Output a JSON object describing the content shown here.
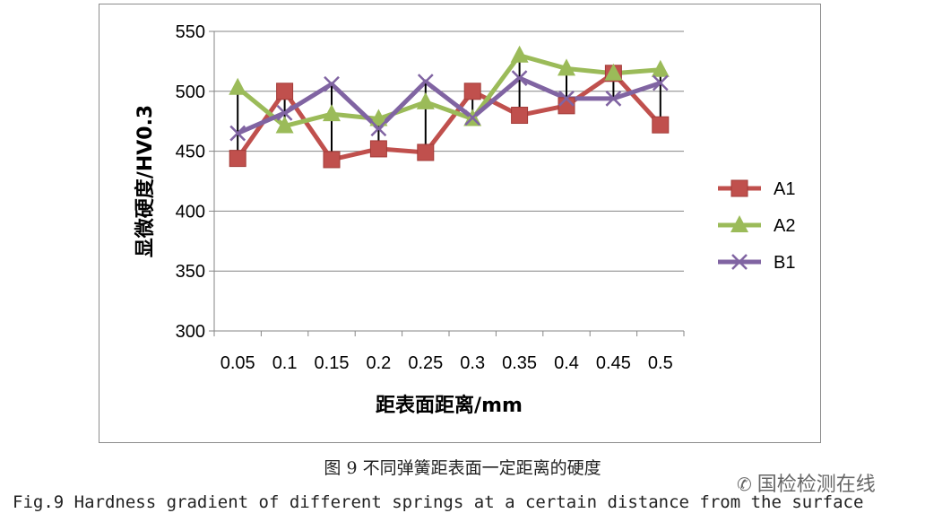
{
  "chart_data": {
    "type": "line",
    "title": "",
    "xlabel": "距表面距离/mm",
    "ylabel": "显微硬度/HV0.3",
    "categories": [
      "0.05",
      "0.1",
      "0.15",
      "0.2",
      "0.25",
      "0.3",
      "0.35",
      "0.4",
      "0.45",
      "0.5"
    ],
    "ylim": [
      300,
      550
    ],
    "yticks": [
      300,
      350,
      400,
      450,
      500,
      550
    ],
    "grid": true,
    "legend_position": "right",
    "series": [
      {
        "name": "A1",
        "color": "#c0504d",
        "marker": "square",
        "values": [
          444,
          500,
          443,
          452,
          449,
          500,
          480,
          488,
          515,
          472
        ]
      },
      {
        "name": "A2",
        "color": "#9bbb59",
        "marker": "triangle",
        "values": [
          503,
          471,
          481,
          477,
          491,
          477,
          530,
          519,
          515,
          518
        ]
      },
      {
        "name": "B1",
        "color": "#8064a2",
        "marker": "x",
        "values": [
          465,
          482,
          506,
          469,
          508,
          478,
          511,
          494,
          494,
          507
        ]
      }
    ],
    "error_bars": [
      {
        "x": "0.05",
        "low": 444,
        "high": 503
      },
      {
        "x": "0.1",
        "low": 471,
        "high": 500
      },
      {
        "x": "0.15",
        "low": 443,
        "high": 506
      },
      {
        "x": "0.2",
        "low": 452,
        "high": 477
      },
      {
        "x": "0.25",
        "low": 449,
        "high": 508
      },
      {
        "x": "0.3",
        "low": 477,
        "high": 500
      },
      {
        "x": "0.35",
        "low": 480,
        "high": 530
      },
      {
        "x": "0.4",
        "low": 488,
        "high": 519
      },
      {
        "x": "0.45",
        "low": 494,
        "high": 515
      },
      {
        "x": "0.5",
        "low": 472,
        "high": 518
      }
    ]
  },
  "caption_cn": "图 9 不同弹簧距表面一定距离的硬度",
  "caption_en": "Fig.9 Hardness gradient of different springs at a certain distance from the surface",
  "watermark": "国检检测在线",
  "watermark_icon": "wechat-icon"
}
